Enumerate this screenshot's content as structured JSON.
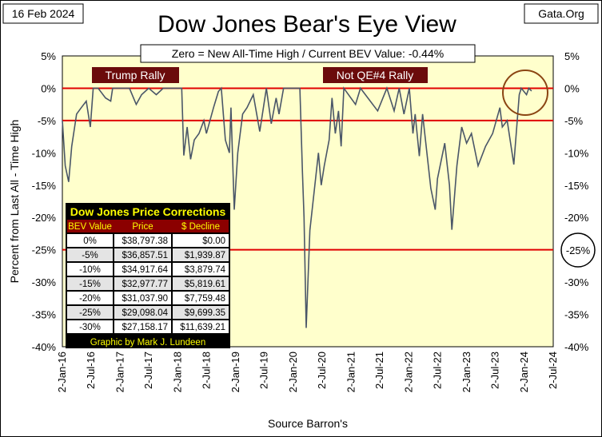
{
  "header": {
    "date": "16 Feb 2024",
    "title": "Dow Jones Bear's Eye View",
    "site": "Gata.Org",
    "subtitle": "Zero = New All-Time High / Current BEV Value:  -0.44%"
  },
  "colors": {
    "plot_bg": "#ffffcc",
    "line": "#4a5668",
    "ref_line": "#e00000",
    "label_bg": "#6b0b0b",
    "table_bg": "#000000",
    "table_title": "#ffff00",
    "circle": "#8b4513"
  },
  "labels": {
    "trump_rally": "Trump Rally",
    "qe4_rally": "Not QE#4 Rally",
    "circled_tick": "-25%"
  },
  "table": {
    "title": "Dow Jones Price Corrections",
    "headers": [
      "BEV Value",
      "Price",
      "$ Decline"
    ],
    "rows": [
      [
        "0%",
        "$38,797.38",
        "$0.00"
      ],
      [
        "-5%",
        "$36,857.51",
        "$1,939.87"
      ],
      [
        "-10%",
        "$34,917.64",
        "$3,879.74"
      ],
      [
        "-15%",
        "$32,977.77",
        "$5,819.61"
      ],
      [
        "-20%",
        "$31,037.90",
        "$7,759.48"
      ],
      [
        "-25%",
        "$29,098.04",
        "$9,699.35"
      ],
      [
        "-30%",
        "$27,158.17",
        "$11,639.21"
      ]
    ],
    "credit": "Graphic by Mark J. Lundeen"
  },
  "chart_data": {
    "type": "line",
    "title": "Dow Jones Bear's Eye View",
    "xlabel": "Source Barron's",
    "ylabel": "Percent from  Last All - Time  High",
    "ylim": [
      -40,
      5
    ],
    "y_ticks": [
      "5%",
      "0%",
      "-5%",
      "-10%",
      "-15%",
      "-20%",
      "-25%",
      "-30%",
      "-35%",
      "-40%"
    ],
    "x_ticks": [
      "2-Jan-16",
      "2-Jul-16",
      "2-Jan-17",
      "2-Jul-17",
      "2-Jan-18",
      "2-Jul-18",
      "2-Jan-19",
      "2-Jul-19",
      "2-Jan-20",
      "2-Jul-20",
      "2-Jan-21",
      "2-Jul-21",
      "2-Jan-22",
      "2-Jul-22",
      "2-Jan-23",
      "2-Jul-23",
      "2-Jan-24",
      "2-Jul-24"
    ],
    "reference_lines": [
      0,
      -5,
      -25
    ],
    "grid": false,
    "series": [
      {
        "points": [
          [
            "2016-01-02",
            -5
          ],
          [
            "2016-01-20",
            -12
          ],
          [
            "2016-02-11",
            -14.5
          ],
          [
            "2016-03-01",
            -9
          ],
          [
            "2016-04-01",
            -4
          ],
          [
            "2016-05-01",
            -3
          ],
          [
            "2016-06-01",
            -2
          ],
          [
            "2016-06-27",
            -6
          ],
          [
            "2016-07-15",
            0
          ],
          [
            "2016-08-15",
            0
          ],
          [
            "2016-10-01",
            -1.5
          ],
          [
            "2016-11-03",
            -2
          ],
          [
            "2016-11-15",
            0
          ],
          [
            "2017-03-01",
            0
          ],
          [
            "2017-04-13",
            -2.5
          ],
          [
            "2017-05-17",
            -1
          ],
          [
            "2017-07-01",
            0
          ],
          [
            "2017-08-18",
            -1
          ],
          [
            "2017-10-01",
            0
          ],
          [
            "2018-01-26",
            0
          ],
          [
            "2018-02-08",
            -10.4
          ],
          [
            "2018-03-01",
            -6
          ],
          [
            "2018-03-23",
            -11
          ],
          [
            "2018-04-15",
            -8
          ],
          [
            "2018-05-15",
            -7
          ],
          [
            "2018-06-15",
            -5
          ],
          [
            "2018-07-01",
            -7
          ],
          [
            "2018-08-15",
            -3
          ],
          [
            "2018-09-15",
            -0.5
          ],
          [
            "2018-10-03",
            0
          ],
          [
            "2018-10-29",
            -8
          ],
          [
            "2018-11-23",
            -10
          ],
          [
            "2018-12-03",
            -3
          ],
          [
            "2018-12-24",
            -18.8
          ],
          [
            "2019-01-15",
            -10
          ],
          [
            "2019-02-15",
            -4
          ],
          [
            "2019-03-15",
            -3
          ],
          [
            "2019-04-23",
            -1
          ],
          [
            "2019-05-15",
            -4
          ],
          [
            "2019-06-03",
            -6.7
          ],
          [
            "2019-07-15",
            0
          ],
          [
            "2019-08-15",
            -5.5
          ],
          [
            "2019-09-15",
            -1.5
          ],
          [
            "2019-10-03",
            -4
          ],
          [
            "2019-11-01",
            0
          ],
          [
            "2020-02-12",
            0
          ],
          [
            "2020-02-28",
            -13
          ],
          [
            "2020-03-09",
            -20
          ],
          [
            "2020-03-23",
            -37.1
          ],
          [
            "2020-04-15",
            -22
          ],
          [
            "2020-06-08",
            -10
          ],
          [
            "2020-06-26",
            -15
          ],
          [
            "2020-07-15",
            -12
          ],
          [
            "2020-08-15",
            -8
          ],
          [
            "2020-09-02",
            -1.5
          ],
          [
            "2020-09-23",
            -7
          ],
          [
            "2020-10-13",
            -3.5
          ],
          [
            "2020-10-30",
            -9
          ],
          [
            "2020-11-16",
            0
          ],
          [
            "2021-01-29",
            -2.5
          ],
          [
            "2021-03-01",
            0
          ],
          [
            "2021-06-18",
            -3.5
          ],
          [
            "2021-08-15",
            0
          ],
          [
            "2021-09-30",
            -3.5
          ],
          [
            "2021-11-01",
            0
          ],
          [
            "2021-12-01",
            -4
          ],
          [
            "2022-01-04",
            0
          ],
          [
            "2022-01-27",
            -7
          ],
          [
            "2022-02-10",
            -4
          ],
          [
            "2022-03-08",
            -10.5
          ],
          [
            "2022-03-29",
            -4
          ],
          [
            "2022-05-20",
            -15.5
          ],
          [
            "2022-06-17",
            -18.8
          ],
          [
            "2022-07-01",
            -14
          ],
          [
            "2022-08-16",
            -8.5
          ],
          [
            "2022-09-15",
            -15
          ],
          [
            "2022-09-30",
            -21.9
          ],
          [
            "2022-11-01",
            -12
          ],
          [
            "2022-12-01",
            -6
          ],
          [
            "2023-01-01",
            -8.5
          ],
          [
            "2023-02-01",
            -7
          ],
          [
            "2023-03-15",
            -12
          ],
          [
            "2023-05-01",
            -9
          ],
          [
            "2023-06-15",
            -7
          ],
          [
            "2023-07-31",
            -3
          ],
          [
            "2023-08-15",
            -6
          ],
          [
            "2023-09-15",
            -5
          ],
          [
            "2023-10-27",
            -11.8
          ],
          [
            "2023-11-30",
            -1
          ],
          [
            "2023-12-13",
            0
          ],
          [
            "2024-01-15",
            -1
          ],
          [
            "2024-01-30",
            0
          ],
          [
            "2024-02-16",
            -0.44
          ]
        ]
      }
    ]
  }
}
